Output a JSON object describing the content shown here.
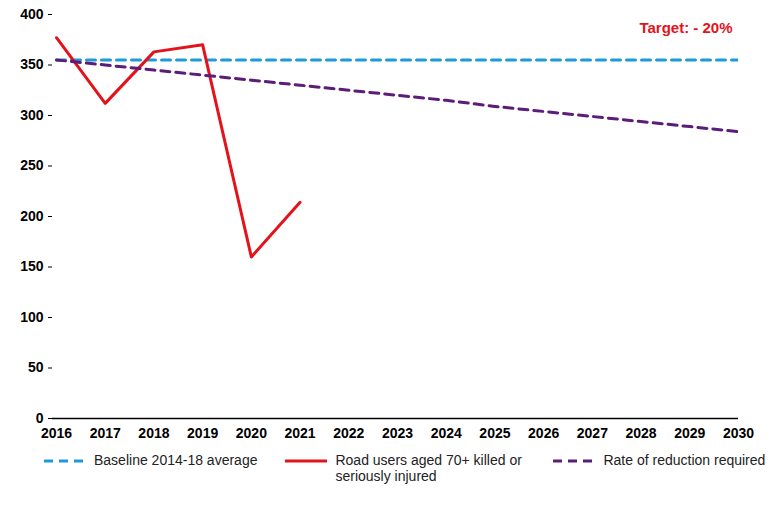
{
  "chart_data": {
    "type": "line",
    "annotation": "Target: - 20%",
    "x": [
      2016,
      2017,
      2018,
      2019,
      2020,
      2021,
      2022,
      2023,
      2024,
      2025,
      2026,
      2027,
      2028,
      2029,
      2030
    ],
    "xlim": [
      2016,
      2030
    ],
    "xticks": [
      2016,
      2017,
      2018,
      2019,
      2020,
      2021,
      2022,
      2023,
      2024,
      2025,
      2026,
      2027,
      2028,
      2029,
      2030
    ],
    "ylim": [
      0,
      400
    ],
    "yticks": [
      0,
      50,
      100,
      150,
      200,
      250,
      300,
      350,
      400
    ],
    "grid": false,
    "legend": "bottom",
    "series": [
      {
        "name": "Baseline 2014-18 average",
        "color": "#1f9ad8",
        "line_style": "dashed",
        "values": [
          355,
          355,
          355,
          355,
          355,
          355,
          355,
          355,
          355,
          355,
          355,
          355,
          355,
          355,
          355
        ]
      },
      {
        "name": "Road users aged 70+ killed or seriously injured",
        "color": "#e3131b",
        "line_style": "solid",
        "values": [
          377,
          312,
          363,
          370,
          160,
          214,
          null,
          null,
          null,
          null,
          null,
          null,
          null,
          null,
          null
        ]
      },
      {
        "name": "Rate of reduction required",
        "color": "#5c1d78",
        "line_style": "dashed",
        "values": [
          355,
          350,
          345,
          340,
          335,
          330,
          325,
          320,
          315,
          309,
          304,
          299,
          294,
          289,
          284
        ]
      }
    ]
  }
}
